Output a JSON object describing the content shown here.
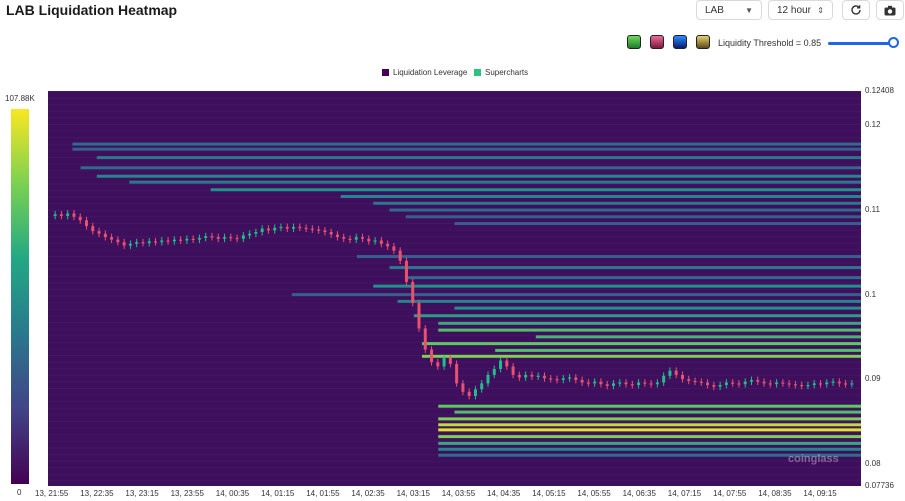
{
  "header": {
    "title": "LAB Liquidation Heatmap",
    "symbol_select": "LAB",
    "interval_select": "12 hour"
  },
  "controls": {
    "threshold_label": "Liquidity Threshold = 0.85",
    "threshold_value": 0.85,
    "palette_colors": [
      "#3fbf4a",
      "#d94a7a",
      "#1a4ccf",
      "#c9b34a"
    ]
  },
  "legend": [
    {
      "label": "Liquidation Leverage",
      "color": "#440154"
    },
    {
      "label": "Supercharts",
      "color": "#2ec27e"
    }
  ],
  "scale": {
    "max": "107.88K",
    "min": "0"
  },
  "watermark": "coinglass",
  "chart_data": {
    "type": "heatmap",
    "title": "LAB Liquidation Heatmap",
    "yaxis": {
      "max": 0.12408,
      "min": 0.07736,
      "ticks": [
        "0.12408",
        "0.12",
        "0.11",
        "0.1",
        "0.09",
        "0.08",
        "0.07736"
      ]
    },
    "xaxis": {
      "ticks": [
        "13, 21:55",
        "13, 22:35",
        "13, 23:15",
        "13, 23:55",
        "14, 00:35",
        "14, 01:15",
        "14, 01:55",
        "14, 02:35",
        "14, 03:15",
        "14, 03:55",
        "14, 04:35",
        "14, 05:15",
        "14, 05:55",
        "14, 06:35",
        "14, 07:15",
        "14, 07:55",
        "14, 08:35",
        "14, 09:15"
      ]
    },
    "price_close": [
      0.1095,
      0.1093,
      0.1096,
      0.1092,
      0.1088,
      0.1081,
      0.1075,
      0.1072,
      0.1068,
      0.1065,
      0.1062,
      0.1058,
      0.106,
      0.1062,
      0.1061,
      0.1063,
      0.1062,
      0.1064,
      0.1063,
      0.1065,
      0.1064,
      0.1066,
      0.1065,
      0.1067,
      0.1069,
      0.1068,
      0.1066,
      0.1068,
      0.1067,
      0.1066,
      0.107,
      0.1072,
      0.1074,
      0.1078,
      0.1076,
      0.1079,
      0.108,
      0.1078,
      0.108,
      0.1079,
      0.1078,
      0.1077,
      0.1076,
      0.1074,
      0.1071,
      0.1068,
      0.1066,
      0.1065,
      0.1068,
      0.1066,
      0.1063,
      0.1064,
      0.106,
      0.1057,
      0.1052,
      0.104,
      0.1015,
      0.099,
      0.096,
      0.0935,
      0.092,
      0.0915,
      0.0925,
      0.0918,
      0.0895,
      0.0885,
      0.088,
      0.0888,
      0.0895,
      0.0905,
      0.0912,
      0.0922,
      0.0915,
      0.0905,
      0.0902,
      0.0905,
      0.0903,
      0.0904,
      0.0901,
      0.09,
      0.0899,
      0.0901,
      0.0902,
      0.0899,
      0.0896,
      0.0895,
      0.0897,
      0.0894,
      0.0892,
      0.0895,
      0.0896,
      0.0894,
      0.0893,
      0.0896,
      0.0895,
      0.0894,
      0.0896,
      0.0904,
      0.091,
      0.0905,
      0.09,
      0.0898,
      0.0897,
      0.0896,
      0.0893,
      0.0891,
      0.0893,
      0.0896,
      0.0895,
      0.0894,
      0.0897,
      0.0899,
      0.0897,
      0.0895,
      0.0894,
      0.0896,
      0.0895,
      0.0894,
      0.0893,
      0.0892,
      0.0893,
      0.0895,
      0.0894,
      0.0896,
      0.0897,
      0.0895,
      0.0894,
      0.0895
    ],
    "liquidity_bands": [
      {
        "price": 0.1178,
        "start": 0.03,
        "level": 0.35
      },
      {
        "price": 0.1172,
        "start": 0.03,
        "level": 0.3
      },
      {
        "price": 0.1162,
        "start": 0.06,
        "level": 0.4
      },
      {
        "price": 0.115,
        "start": 0.04,
        "level": 0.35
      },
      {
        "price": 0.114,
        "start": 0.06,
        "level": 0.45
      },
      {
        "price": 0.1133,
        "start": 0.1,
        "level": 0.4
      },
      {
        "price": 0.1124,
        "start": 0.2,
        "level": 0.5
      },
      {
        "price": 0.1116,
        "start": 0.36,
        "level": 0.45
      },
      {
        "price": 0.1108,
        "start": 0.4,
        "level": 0.4
      },
      {
        "price": 0.11,
        "start": 0.42,
        "level": 0.35
      },
      {
        "price": 0.1092,
        "start": 0.44,
        "level": 0.3
      },
      {
        "price": 0.1084,
        "start": 0.5,
        "level": 0.3
      },
      {
        "price": 0.1045,
        "start": 0.38,
        "level": 0.3
      },
      {
        "price": 0.1032,
        "start": 0.42,
        "level": 0.4
      },
      {
        "price": 0.102,
        "start": 0.44,
        "level": 0.35
      },
      {
        "price": 0.101,
        "start": 0.4,
        "level": 0.5
      },
      {
        "price": 0.1,
        "start": 0.3,
        "level": 0.3
      },
      {
        "price": 0.0992,
        "start": 0.43,
        "level": 0.45
      },
      {
        "price": 0.0984,
        "start": 0.5,
        "level": 0.5
      },
      {
        "price": 0.0975,
        "start": 0.45,
        "level": 0.55
      },
      {
        "price": 0.0966,
        "start": 0.48,
        "level": 0.6
      },
      {
        "price": 0.0958,
        "start": 0.48,
        "level": 0.7
      },
      {
        "price": 0.095,
        "start": 0.6,
        "level": 0.65
      },
      {
        "price": 0.0942,
        "start": 0.46,
        "level": 0.75
      },
      {
        "price": 0.0934,
        "start": 0.55,
        "level": 0.7
      },
      {
        "price": 0.0927,
        "start": 0.46,
        "level": 0.8
      },
      {
        "price": 0.0868,
        "start": 0.48,
        "level": 0.75
      },
      {
        "price": 0.0861,
        "start": 0.5,
        "level": 0.7
      },
      {
        "price": 0.0853,
        "start": 0.48,
        "level": 0.8
      },
      {
        "price": 0.0846,
        "start": 0.48,
        "level": 0.9
      },
      {
        "price": 0.084,
        "start": 0.48,
        "level": 0.95
      },
      {
        "price": 0.0832,
        "start": 0.48,
        "level": 0.8
      },
      {
        "price": 0.0824,
        "start": 0.48,
        "level": 0.6
      },
      {
        "price": 0.0817,
        "start": 0.48,
        "level": 0.45
      },
      {
        "price": 0.081,
        "start": 0.48,
        "level": 0.35
      }
    ]
  }
}
